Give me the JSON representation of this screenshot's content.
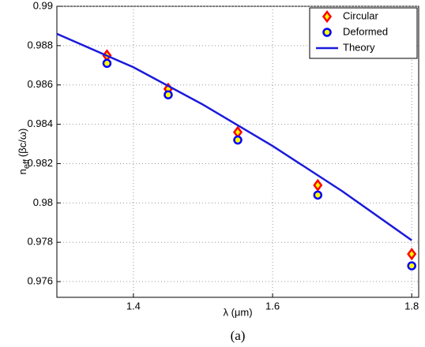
{
  "chart_data": {
    "type": "line_scatter",
    "xlabel": "λ (μm)",
    "ylabel": [
      "n",
      "eff",
      "(βc/ω)"
    ],
    "caption": "(a)",
    "xlim": [
      1.29,
      1.81
    ],
    "xticks": [
      1.4,
      1.6,
      1.8
    ],
    "ylim": [
      0.9752,
      0.99
    ],
    "yticks": [
      0.976,
      0.978,
      0.98,
      0.982,
      0.984,
      0.986,
      0.988,
      0.99
    ],
    "grid": true,
    "legend": "upper right",
    "series": [
      {
        "name": "Circular",
        "kind": "diamond",
        "color": "#ff0000",
        "face": "#ffff00",
        "x": [
          1.362,
          1.45,
          1.55,
          1.665,
          1.8
        ],
        "values": [
          0.9875,
          0.9858,
          0.9836,
          0.9809,
          0.9774
        ]
      },
      {
        "name": "Deformed",
        "kind": "circle",
        "color": "#0000ff",
        "face": "#ffff00",
        "x": [
          1.362,
          1.45,
          1.55,
          1.665,
          1.8
        ],
        "values": [
          0.9871,
          0.9855,
          0.9832,
          0.9804,
          0.9768
        ]
      },
      {
        "name": "Theory",
        "kind": "line",
        "color": "#1a1adb",
        "x": [
          1.29,
          1.4,
          1.5,
          1.6,
          1.7,
          1.8
        ],
        "values": [
          0.9886,
          0.9869,
          0.985,
          0.9829,
          0.9806,
          0.9781
        ]
      }
    ]
  }
}
